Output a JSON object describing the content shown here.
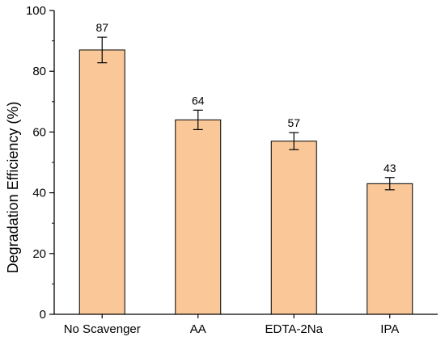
{
  "chart_data": {
    "type": "bar",
    "categories": [
      "No Scavenger",
      "AA",
      "EDTA-2Na",
      "IPA"
    ],
    "values": [
      87,
      64,
      57,
      43
    ],
    "errors": [
      4.2,
      3.2,
      2.8,
      2.0
    ],
    "data_labels": [
      "87",
      "64",
      "57",
      "43"
    ],
    "title": "",
    "xlabel": "",
    "ylabel": "Degradation Efficiency (%)",
    "ylim": [
      0,
      100
    ],
    "yticks": [
      0,
      20,
      40,
      60,
      80,
      100
    ],
    "ytick_labels": [
      "0",
      "20",
      "40",
      "60",
      "80",
      "100"
    ],
    "grid": false,
    "legend": "none",
    "bar_color": "#fac898",
    "bar_edge_color": "#000000",
    "axis_color": "#000000"
  }
}
